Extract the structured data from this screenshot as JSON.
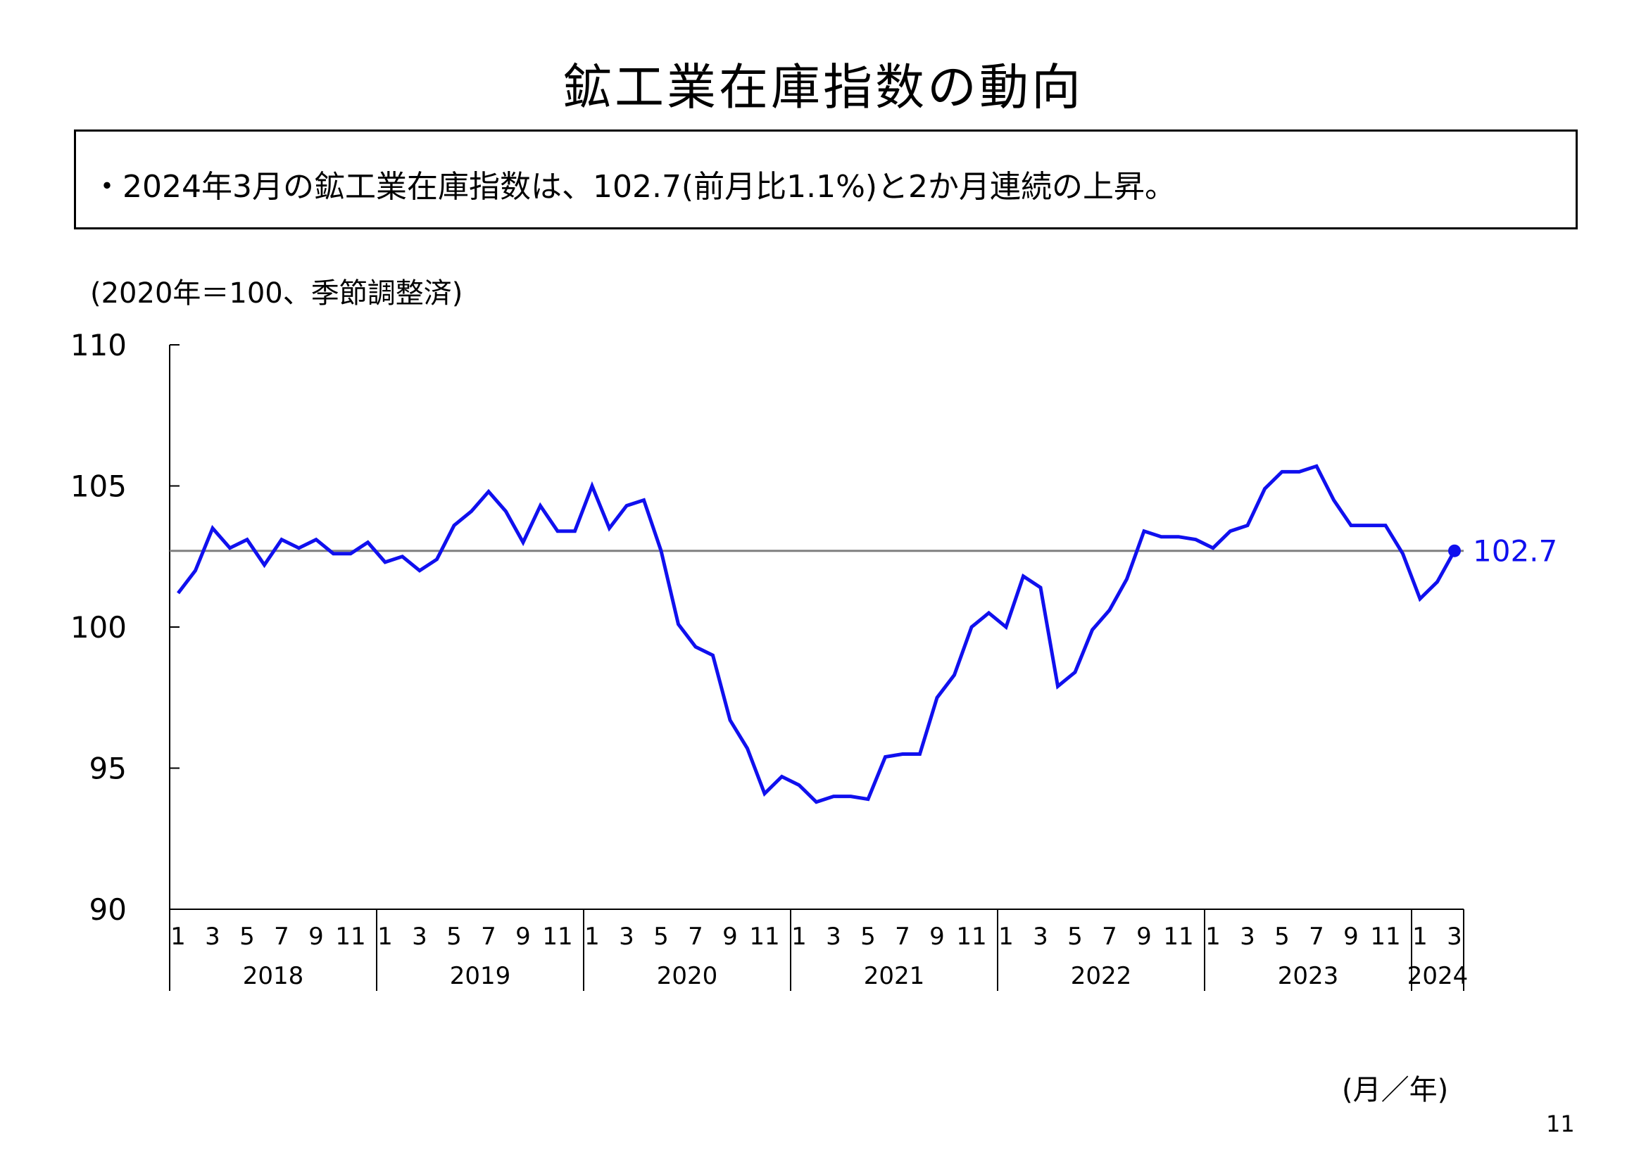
{
  "title": "鉱工業在庫指数の動向",
  "summary": "・2024年3月の鉱工業在庫指数は、102.7(前月比1.1%)と2か月連続の上昇。",
  "unit_note": "(2020年＝100、季節調整済)",
  "axis_note": "(月／年)",
  "page_number": "11",
  "colors": {
    "series": "#1010ee",
    "reference_line": "#808080",
    "axis": "#000000"
  },
  "chart_data": {
    "type": "line",
    "ylim": [
      90,
      110
    ],
    "yticks": [
      "90",
      "95",
      "100",
      "105",
      "110"
    ],
    "month_tick_labels": [
      "1",
      "3",
      "5",
      "7",
      "9",
      "11"
    ],
    "years": [
      "2018",
      "2019",
      "2020",
      "2021",
      "2022",
      "2023",
      "2024"
    ],
    "end_label": "102.7",
    "reference_value": 102.7,
    "grid": false,
    "series": [
      {
        "x": [
          "2018-01",
          "2018-02",
          "2018-03",
          "2018-04",
          "2018-05",
          "2018-06",
          "2018-07",
          "2018-08",
          "2018-09",
          "2018-10",
          "2018-11",
          "2018-12",
          "2019-01",
          "2019-02",
          "2019-03",
          "2019-04",
          "2019-05",
          "2019-06",
          "2019-07",
          "2019-08",
          "2019-09",
          "2019-10",
          "2019-11",
          "2019-12",
          "2020-01",
          "2020-02",
          "2020-03",
          "2020-04",
          "2020-05",
          "2020-06",
          "2020-07",
          "2020-08",
          "2020-09",
          "2020-10",
          "2020-11",
          "2020-12",
          "2021-01",
          "2021-02",
          "2021-03",
          "2021-04",
          "2021-05",
          "2021-06",
          "2021-07",
          "2021-08",
          "2021-09",
          "2021-10",
          "2021-11",
          "2021-12",
          "2022-01",
          "2022-02",
          "2022-03",
          "2022-04",
          "2022-05",
          "2022-06",
          "2022-07",
          "2022-08",
          "2022-09",
          "2022-10",
          "2022-11",
          "2022-12",
          "2023-01",
          "2023-02",
          "2023-03",
          "2023-04",
          "2023-05",
          "2023-06",
          "2023-07",
          "2023-08",
          "2023-09",
          "2023-10",
          "2023-11",
          "2023-12",
          "2024-01",
          "2024-02",
          "2024-03"
        ],
        "values": [
          101.2,
          102.0,
          103.5,
          102.8,
          103.1,
          102.2,
          103.1,
          102.8,
          103.1,
          102.6,
          102.6,
          103.0,
          102.3,
          102.5,
          102.0,
          102.4,
          103.6,
          104.1,
          104.8,
          104.1,
          103.0,
          104.3,
          103.4,
          103.4,
          105.0,
          103.5,
          104.3,
          104.5,
          102.7,
          100.1,
          99.3,
          99.0,
          96.7,
          95.7,
          94.1,
          94.7,
          94.4,
          93.8,
          94.0,
          94.0,
          93.9,
          95.4,
          95.5,
          95.5,
          97.5,
          98.3,
          100.0,
          100.5,
          100.0,
          101.8,
          101.4,
          97.9,
          98.4,
          99.9,
          100.6,
          101.7,
          103.4,
          103.2,
          103.2,
          103.1,
          102.8,
          103.4,
          103.6,
          104.9,
          105.5,
          105.5,
          105.7,
          104.5,
          103.6,
          103.6,
          103.6,
          102.6,
          101.0,
          101.6,
          102.7
        ]
      }
    ]
  }
}
